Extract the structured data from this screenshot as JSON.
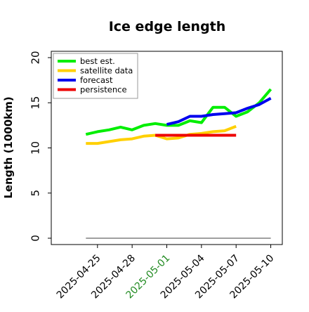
{
  "chart_data": {
    "type": "line",
    "title": "Ice edge length",
    "xlabel": "",
    "ylabel": "Length (1000km)",
    "ylim": [
      0,
      20
    ],
    "yticks": [
      0,
      5,
      10,
      15,
      20
    ],
    "xlim": [
      "2025-04-21",
      "2025-05-11"
    ],
    "xticks": [
      "2025-04-25",
      "2025-04-28",
      "2025-05-01",
      "2025-05-04",
      "2025-05-07",
      "2025-05-10"
    ],
    "highlighted_tick": "2025-05-01",
    "grid": false,
    "legend": "top-left",
    "series": [
      {
        "name": "best est.",
        "color": "#00ee00",
        "points": [
          [
            "2025-04-24",
            11.5
          ],
          [
            "2025-04-25",
            11.8
          ],
          [
            "2025-04-26",
            12.0
          ],
          [
            "2025-04-27",
            12.3
          ],
          [
            "2025-04-28",
            12.0
          ],
          [
            "2025-04-29",
            12.5
          ],
          [
            "2025-04-30",
            12.7
          ],
          [
            "2025-05-01",
            12.5
          ],
          [
            "2025-05-02",
            12.5
          ],
          [
            "2025-05-03",
            13.0
          ],
          [
            "2025-05-04",
            12.8
          ],
          [
            "2025-05-05",
            14.5
          ],
          [
            "2025-05-06",
            14.5
          ],
          [
            "2025-05-07",
            13.5
          ],
          [
            "2025-05-08",
            14.0
          ],
          [
            "2025-05-09",
            15.0
          ],
          [
            "2025-05-10",
            16.5
          ]
        ]
      },
      {
        "name": "satellite data",
        "color": "#ffd000",
        "points": [
          [
            "2025-04-24",
            10.5
          ],
          [
            "2025-04-25",
            10.5
          ],
          [
            "2025-04-26",
            10.7
          ],
          [
            "2025-04-27",
            10.9
          ],
          [
            "2025-04-28",
            11.0
          ],
          [
            "2025-04-29",
            11.3
          ],
          [
            "2025-04-30",
            11.4
          ],
          [
            "2025-05-01",
            11.0
          ],
          [
            "2025-05-02",
            11.1
          ],
          [
            "2025-05-03",
            11.5
          ],
          [
            "2025-05-04",
            11.6
          ],
          [
            "2025-05-05",
            11.8
          ],
          [
            "2025-05-06",
            11.9
          ],
          [
            "2025-05-07",
            12.4
          ]
        ]
      },
      {
        "name": "forecast",
        "color": "#0000ee",
        "points": [
          [
            "2025-05-01",
            12.6
          ],
          [
            "2025-05-02",
            12.9
          ],
          [
            "2025-05-03",
            13.5
          ],
          [
            "2025-05-04",
            13.5
          ],
          [
            "2025-05-05",
            13.7
          ],
          [
            "2025-05-06",
            13.8
          ],
          [
            "2025-05-07",
            13.9
          ],
          [
            "2025-05-08",
            14.4
          ],
          [
            "2025-05-09",
            14.8
          ],
          [
            "2025-05-10",
            15.5
          ]
        ]
      },
      {
        "name": "persistence",
        "color": "#ee0000",
        "points": [
          [
            "2025-04-30",
            11.4
          ],
          [
            "2025-05-07",
            11.4
          ]
        ]
      },
      {
        "name": "",
        "color": "#808080",
        "points": [
          [
            "2025-04-24",
            0
          ],
          [
            "2025-05-10",
            0
          ]
        ]
      }
    ]
  }
}
